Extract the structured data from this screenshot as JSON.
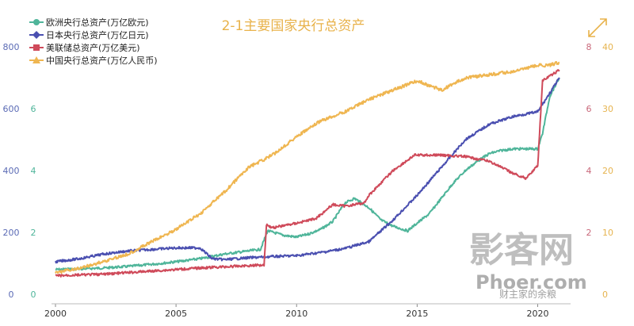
{
  "chart_data": {
    "type": "line",
    "title": "2-1主要国家央行总资产",
    "x_ticks": [
      "2000",
      "2005",
      "2010",
      "2015",
      "2020"
    ],
    "xlim": [
      2000,
      2021.2
    ],
    "axes": [
      {
        "id": "jpy",
        "ticks": [
          "0",
          "200",
          "400",
          "600",
          "800"
        ],
        "range": [
          0,
          800
        ],
        "color": "#5b6bb5"
      },
      {
        "id": "eur",
        "ticks": [
          "0",
          "2",
          "4",
          "6"
        ],
        "range": [
          0,
          8
        ],
        "color": "#4fb59a"
      },
      {
        "id": "usd",
        "ticks": [
          "2",
          "4",
          "6",
          "8"
        ],
        "range": [
          0,
          8
        ],
        "color": "#c9687a"
      },
      {
        "id": "cny",
        "ticks": [
          "0",
          "10",
          "20",
          "30",
          "40"
        ],
        "range": [
          0,
          40
        ],
        "color": "#e6b450"
      }
    ],
    "series": [
      {
        "name": "欧洲央行总资产(万亿欧元)",
        "axis": "eur",
        "color": "#4fb59a",
        "marker": "circle",
        "x": [
          2000,
          2001,
          2002,
          2003,
          2004,
          2005,
          2006,
          2007,
          2008.5,
          2008.8,
          2009.5,
          2010,
          2010.5,
          2011,
          2011.5,
          2012,
          2012.4,
          2013,
          2013.5,
          2014,
          2014.6,
          2015,
          2015.5,
          2016,
          2016.5,
          2017,
          2017.5,
          2018,
          2018.5,
          2019,
          2019.5,
          2020,
          2020.2,
          2020.5,
          2020.9
        ],
        "y": [
          0.8,
          0.82,
          0.85,
          0.9,
          0.97,
          1.05,
          1.15,
          1.3,
          1.45,
          2.05,
          1.9,
          1.85,
          1.95,
          2.1,
          2.35,
          2.95,
          3.1,
          2.8,
          2.4,
          2.2,
          2.05,
          2.3,
          2.6,
          3.1,
          3.6,
          4.0,
          4.3,
          4.55,
          4.65,
          4.7,
          4.7,
          4.7,
          5.2,
          6.4,
          7.0
        ]
      },
      {
        "name": "日本央行总资产(万亿日元)",
        "axis": "jpy",
        "color": "#4a4fb0",
        "marker": "diamond",
        "x": [
          2000,
          2001,
          2002,
          2003,
          2004,
          2005,
          2006,
          2006.5,
          2007,
          2008,
          2009,
          2010,
          2011,
          2012,
          2013,
          2014,
          2015,
          2016,
          2017,
          2018,
          2019,
          2020,
          2020.5,
          2020.9
        ],
        "y": [
          105,
          115,
          130,
          140,
          145,
          150,
          150,
          115,
          112,
          118,
          122,
          125,
          135,
          148,
          170,
          240,
          320,
          410,
          500,
          550,
          575,
          590,
          650,
          700
        ]
      },
      {
        "name": "美联储总资产(万亿美元)",
        "axis": "usd",
        "color": "#cf4a5a",
        "marker": "square",
        "x": [
          2000,
          2002,
          2004,
          2006,
          2008.65,
          2008.75,
          2009,
          2010,
          2010.8,
          2011.5,
          2012,
          2012.8,
          2013,
          2014,
          2014.9,
          2015,
          2016,
          2017,
          2018,
          2019,
          2019.5,
          2020,
          2020.2,
          2020.5,
          2020.9
        ],
        "y": [
          0.6,
          0.65,
          0.75,
          0.85,
          0.95,
          2.25,
          2.15,
          2.3,
          2.45,
          2.9,
          2.85,
          2.95,
          3.2,
          4.0,
          4.5,
          4.5,
          4.5,
          4.45,
          4.3,
          3.9,
          3.75,
          4.15,
          6.9,
          7.05,
          7.25
        ]
      },
      {
        "name": "中国央行总资产(万亿人民币)",
        "axis": "cny",
        "color": "#efb651",
        "marker": "triangle",
        "x": [
          2000,
          2001,
          2002,
          2003,
          2004,
          2005,
          2006,
          2007,
          2008,
          2009,
          2010,
          2011,
          2012,
          2013,
          2014,
          2015,
          2016,
          2017,
          2018,
          2019,
          2020,
          2020.5,
          2020.9
        ],
        "y": [
          3.5,
          4.2,
          5.3,
          6.5,
          8.5,
          10.5,
          13.0,
          16.5,
          20.5,
          22.5,
          25.5,
          28.0,
          29.5,
          31.5,
          33.0,
          34.5,
          33.0,
          35.0,
          35.5,
          36.0,
          37.0,
          37.0,
          37.5
        ]
      }
    ],
    "grid": false,
    "legend_position": "top-left"
  },
  "watermark": {
    "big": "影客网",
    "small": "Phoer.com",
    "sub": "财主家的余粮"
  }
}
